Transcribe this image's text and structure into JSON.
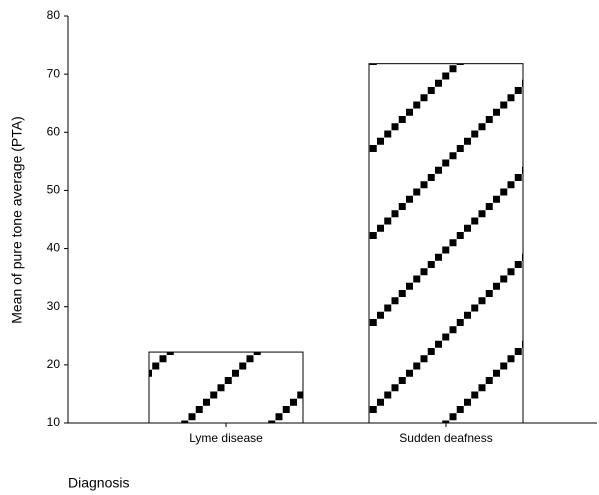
{
  "chart_data": {
    "type": "bar",
    "y_label": "Mean of pure tone average (PTA)",
    "x_label": "Diagnosis",
    "categories": [
      "Lyme disease",
      "Sudden deafness"
    ],
    "values": [
      22.2,
      71.8
    ],
    "color": "#000000",
    "ylim": [
      10,
      80
    ],
    "yticks": [
      10,
      20,
      30,
      40,
      50,
      60,
      70,
      80
    ],
    "grid": false
  }
}
